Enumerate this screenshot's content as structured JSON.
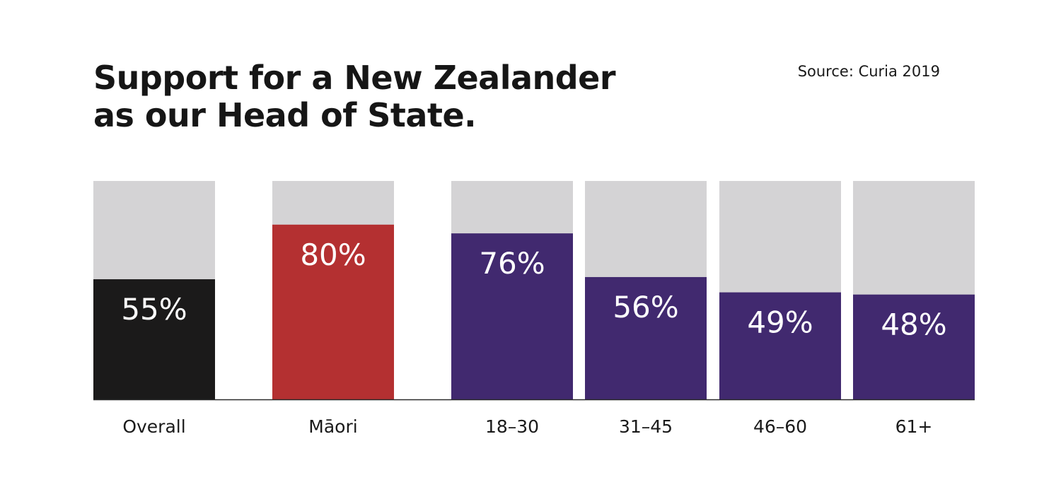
{
  "title_line1": "Support for a New Zealander",
  "title_line2": "as our Head of State.",
  "source": "Source: Curia 2019",
  "colors": {
    "background_bar": "#d4d3d5",
    "overall": "#1b1a1a",
    "maori": "#b43031",
    "age": "#41296f",
    "baseline": "#2a2a2a",
    "value_text": "#ffffff"
  },
  "chart_data": {
    "type": "bar",
    "title": "Support for a New Zealander as our Head of State.",
    "categories": [
      "Overall",
      "Māori",
      "18–30",
      "31–45",
      "46–60",
      "61+"
    ],
    "values": [
      55,
      80,
      76,
      56,
      49,
      48
    ],
    "value_labels": [
      "55%",
      "80%",
      "76%",
      "56%",
      "49%",
      "48%"
    ],
    "bar_colors": [
      "overall",
      "maori",
      "age",
      "age",
      "age",
      "age"
    ],
    "ylim": [
      0,
      100
    ],
    "stacked_remainder_to": 100,
    "grid": false,
    "legend": "none",
    "xlabel": "",
    "ylabel": ""
  }
}
